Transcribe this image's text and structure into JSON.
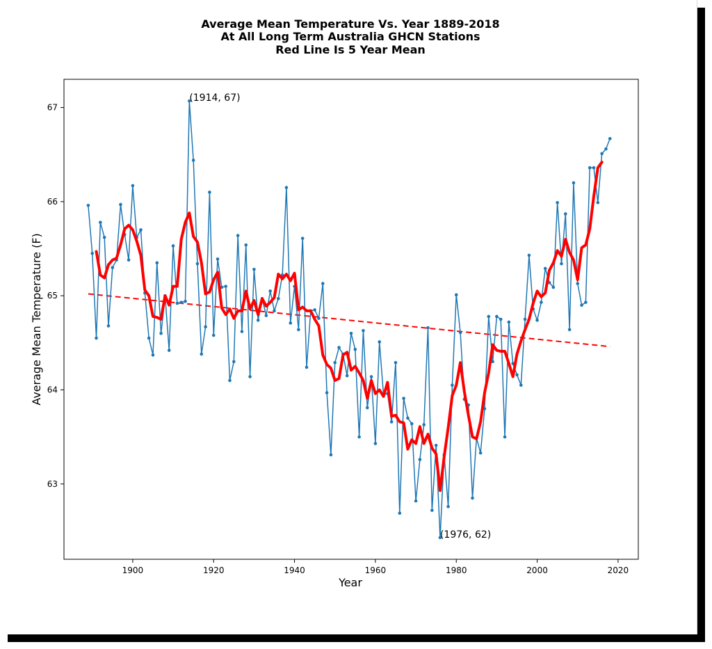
{
  "chart_data": {
    "type": "line",
    "title_lines": [
      "Average Mean Temperature Vs. Year 1889-2018",
      "At All Long Term Australia GHCN Stations",
      "Red Line Is 5 Year Mean"
    ],
    "xlabel": "Year",
    "ylabel": "Average Mean Temperature (F)",
    "xlim": [
      1883,
      2025
    ],
    "ylim": [
      62.2,
      67.3
    ],
    "xticks": [
      1900,
      1920,
      1940,
      1960,
      1980,
      2000,
      2020
    ],
    "yticks": [
      63,
      64,
      65,
      66,
      67
    ],
    "grid": false,
    "series": [
      {
        "role": "annual",
        "color": "#1f77b4",
        "x": [
          1889,
          1890,
          1891,
          1892,
          1893,
          1894,
          1895,
          1896,
          1897,
          1898,
          1899,
          1900,
          1901,
          1902,
          1903,
          1904,
          1905,
          1906,
          1907,
          1908,
          1909,
          1910,
          1911,
          1912,
          1913,
          1914,
          1915,
          1916,
          1917,
          1918,
          1919,
          1920,
          1921,
          1922,
          1923,
          1924,
          1925,
          1926,
          1927,
          1928,
          1929,
          1930,
          1931,
          1932,
          1933,
          1934,
          1935,
          1936,
          1937,
          1938,
          1939,
          1940,
          1941,
          1942,
          1943,
          1944,
          1945,
          1946,
          1947,
          1948,
          1949,
          1950,
          1951,
          1952,
          1953,
          1954,
          1955,
          1956,
          1957,
          1958,
          1959,
          1960,
          1961,
          1962,
          1963,
          1964,
          1965,
          1966,
          1967,
          1968,
          1969,
          1970,
          1971,
          1972,
          1973,
          1974,
          1975,
          1976,
          1977,
          1978,
          1979,
          1980,
          1981,
          1982,
          1983,
          1984,
          1985,
          1986,
          1987,
          1988,
          1989,
          1990,
          1991,
          1992,
          1993,
          1994,
          1995,
          1996,
          1997,
          1998,
          1999,
          2000,
          2001,
          2002,
          2003,
          2004,
          2005,
          2006,
          2007,
          2008,
          2009,
          2010,
          2011,
          2012,
          2013,
          2014,
          2015,
          2016,
          2017,
          2018
        ],
        "y": [
          65.96,
          65.45,
          64.55,
          65.78,
          65.62,
          64.68,
          65.3,
          65.38,
          65.97,
          65.65,
          65.38,
          66.17,
          65.62,
          65.7,
          65.03,
          64.55,
          64.37,
          65.35,
          64.6,
          65.0,
          64.42,
          65.53,
          64.92,
          64.93,
          64.94,
          67.07,
          66.44,
          65.34,
          64.38,
          64.67,
          66.1,
          64.58,
          65.39,
          65.09,
          65.1,
          64.1,
          64.3,
          65.64,
          64.62,
          65.54,
          64.14,
          65.28,
          64.74,
          64.97,
          64.79,
          65.05,
          64.84,
          64.97,
          65.22,
          66.15,
          64.71,
          65.1,
          64.64,
          65.61,
          64.24,
          64.84,
          64.85,
          64.76,
          65.13,
          63.97,
          63.31,
          64.29,
          64.45,
          64.38,
          64.15,
          64.6,
          64.43,
          63.5,
          64.63,
          63.81,
          64.14,
          63.43,
          64.51,
          63.95,
          63.96,
          63.66,
          64.29,
          62.69,
          63.91,
          63.7,
          63.64,
          62.82,
          63.26,
          63.63,
          64.66,
          62.72,
          63.41,
          62.43,
          63.31,
          62.76,
          64.05,
          65.01,
          64.61,
          63.9,
          63.84,
          62.85,
          63.49,
          63.33,
          63.8,
          64.78,
          64.3,
          64.78,
          64.75,
          63.5,
          64.72,
          64.28,
          64.16,
          64.05,
          64.75,
          65.43,
          64.86,
          64.74,
          64.93,
          65.29,
          65.14,
          65.09,
          65.99,
          65.34,
          65.87,
          64.64,
          66.2,
          65.13,
          64.9,
          64.93,
          66.36,
          66.36,
          65.99,
          66.51,
          66.56,
          66.67
        ]
      },
      {
        "role": "5-year mean",
        "color": "#ff0000",
        "x": [
          1891,
          1892,
          1893,
          1894,
          1895,
          1896,
          1897,
          1898,
          1899,
          1900,
          1901,
          1902,
          1903,
          1904,
          1905,
          1906,
          1907,
          1908,
          1909,
          1910,
          1911,
          1912,
          1913,
          1914,
          1915,
          1916,
          1917,
          1918,
          1919,
          1920,
          1921,
          1922,
          1923,
          1924,
          1925,
          1926,
          1927,
          1928,
          1929,
          1930,
          1931,
          1932,
          1933,
          1934,
          1935,
          1936,
          1937,
          1938,
          1939,
          1940,
          1941,
          1942,
          1943,
          1944,
          1945,
          1946,
          1947,
          1948,
          1949,
          1950,
          1951,
          1952,
          1953,
          1954,
          1955,
          1956,
          1957,
          1958,
          1959,
          1960,
          1961,
          1962,
          1963,
          1964,
          1965,
          1966,
          1967,
          1968,
          1969,
          1970,
          1971,
          1972,
          1973,
          1974,
          1975,
          1976,
          1977,
          1978,
          1979,
          1980,
          1981,
          1982,
          1983,
          1984,
          1985,
          1986,
          1987,
          1988,
          1989,
          1990,
          1991,
          1992,
          1993,
          1994,
          1995,
          1996,
          1997,
          1998,
          1999,
          2000,
          2001,
          2002,
          2003,
          2004,
          2005,
          2006,
          2007,
          2008,
          2009,
          2010,
          2011,
          2012,
          2013,
          2014,
          2015,
          2016
        ],
        "y": [
          65.47,
          65.22,
          65.19,
          65.33,
          65.38,
          65.4,
          65.54,
          65.71,
          65.75,
          65.7,
          65.58,
          65.43,
          65.06,
          65.0,
          64.78,
          64.77,
          64.75,
          65.0,
          64.9,
          65.1,
          65.1,
          65.6,
          65.78,
          65.88,
          65.63,
          65.57,
          65.35,
          65.02,
          65.04,
          65.17,
          65.25,
          64.87,
          64.8,
          64.86,
          64.76,
          64.84,
          64.84,
          65.05,
          64.86,
          64.95,
          64.8,
          64.97,
          64.89,
          64.93,
          64.98,
          65.23,
          65.18,
          65.23,
          65.16,
          65.24,
          64.85,
          64.88,
          64.84,
          64.84,
          64.75,
          64.68,
          64.37,
          64.27,
          64.23,
          64.1,
          64.12,
          64.37,
          64.4,
          64.21,
          64.25,
          64.18,
          64.1,
          63.91,
          64.1,
          63.96,
          64.0,
          63.93,
          64.08,
          63.72,
          63.73,
          63.66,
          63.65,
          63.37,
          63.47,
          63.43,
          63.61,
          63.43,
          63.53,
          63.38,
          63.32,
          62.93,
          63.29,
          63.6,
          63.94,
          64.05,
          64.29,
          63.98,
          63.73,
          63.5,
          63.48,
          63.66,
          63.97,
          64.18,
          64.48,
          64.42,
          64.41,
          64.41,
          64.28,
          64.14,
          64.38,
          64.52,
          64.64,
          64.75,
          64.92,
          65.05,
          64.99,
          65.03,
          65.27,
          65.35,
          65.48,
          65.42,
          65.6,
          65.46,
          65.38,
          65.17,
          65.51,
          65.54,
          65.71,
          66.06,
          66.36,
          66.42
        ]
      },
      {
        "role": "trend",
        "color": "#ff0000",
        "style": "dashed",
        "x": [
          1889,
          2018
        ],
        "y": [
          65.02,
          64.46
        ]
      }
    ],
    "annotations": [
      {
        "text": "(1914, 67)",
        "x": 1914,
        "y": 67.07
      },
      {
        "text": "(1976, 62)",
        "x": 1976,
        "y": 62.43
      }
    ]
  }
}
